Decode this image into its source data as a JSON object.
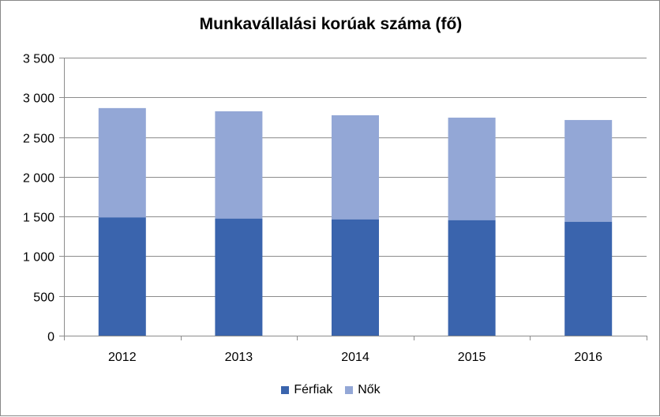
{
  "chart_data": {
    "type": "bar",
    "stacked": true,
    "title": "Munkavállalási korúak száma (fő)",
    "xlabel": "",
    "ylabel": "",
    "categories": [
      "2012",
      "2013",
      "2014",
      "2015",
      "2016"
    ],
    "series": [
      {
        "name": "Férfiak",
        "color": "#3a64ad",
        "values": [
          1490,
          1475,
          1465,
          1455,
          1435
        ]
      },
      {
        "name": "Nők",
        "color": "#93a7d6",
        "values": [
          1375,
          1350,
          1310,
          1290,
          1280
        ]
      }
    ],
    "ylim": [
      0,
      3500
    ],
    "yticks": [
      0,
      500,
      1000,
      1500,
      2000,
      2500,
      3000,
      3500
    ],
    "ytick_labels": [
      "0",
      "500",
      "1 000",
      "1 500",
      "2 000",
      "2 500",
      "3 000",
      "3 500"
    ],
    "grid": true,
    "legend_position": "bottom"
  }
}
